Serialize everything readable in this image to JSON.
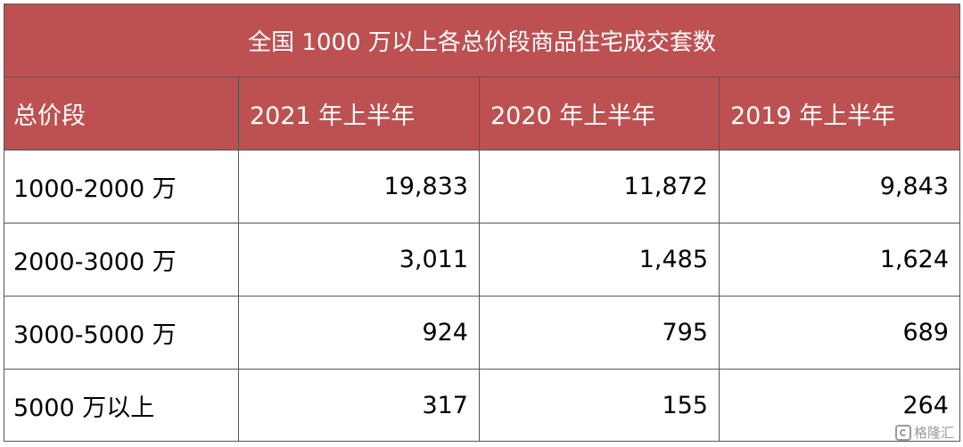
{
  "table": {
    "title": "全国 1000 万以上各总价段商品住宅成交套数",
    "headers": [
      "总价段",
      "2021 年上半年",
      "2020 年上半年",
      "2019 年上半年"
    ],
    "rows": [
      {
        "segment": "1000-2000 万",
        "v2021": "19,833",
        "v2020": "11,872",
        "v2019": "9,843"
      },
      {
        "segment": "2000-3000 万",
        "v2021": "3,011",
        "v2020": "1,485",
        "v2019": "1,624"
      },
      {
        "segment": "3000-5000 万",
        "v2021": "924",
        "v2020": "795",
        "v2019": "689"
      },
      {
        "segment": "5000 万以上",
        "v2021": "317",
        "v2020": "155",
        "v2019": "264"
      }
    ]
  },
  "watermark": {
    "text": "格隆汇",
    "icon": "gelonghui-logo-icon"
  }
}
